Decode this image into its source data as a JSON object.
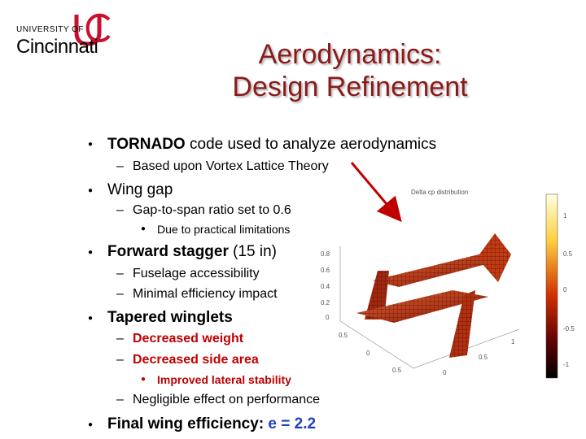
{
  "logo": {
    "university_of": "UNIVERSITY OF",
    "name": "Cincinnati",
    "mark_color": "#c8102e"
  },
  "title": {
    "line1": "Aerodynamics:",
    "line2": "Design Refinement",
    "color": "#8b1a1a"
  },
  "bullets": {
    "tornado": {
      "bold": "TORNADO",
      "rest": " code used to analyze aerodynamics"
    },
    "vortex": "Based upon Vortex Lattice Theory",
    "wing_gap": "Wing gap",
    "gap_ratio": "Gap-to-span ratio set to 0.6",
    "practical": "Due to practical limitations",
    "stagger": {
      "bold": "Forward stagger",
      "rest": " (15 in)"
    },
    "fuselage": "Fuselage accessibility",
    "minimal": "Minimal efficiency impact",
    "tapered": "Tapered winglets",
    "weight": "Decreased weight",
    "side_area": "Decreased side area",
    "lateral": "Improved lateral stability",
    "negligible": "Negligible effect on performance",
    "final": {
      "text": "Final wing efficiency: ",
      "value": "e = 2.2"
    }
  },
  "dash": "–",
  "plot": {
    "title": "Delta cp distribution",
    "z_ticks": [
      "0.8",
      "0.6",
      "0.4",
      "0.2",
      "0"
    ],
    "x_ticks": [
      "0.5",
      "0",
      "0.5"
    ],
    "y_ticks": [
      "0",
      "0.5",
      "1"
    ],
    "colorbar_ticks": [
      "1",
      "0.5",
      "0",
      "-0.5",
      "-1"
    ]
  },
  "colors": {
    "accent_red": "#c00000",
    "accent_blue": "#1f3fbf",
    "arrow": "#c00000"
  }
}
